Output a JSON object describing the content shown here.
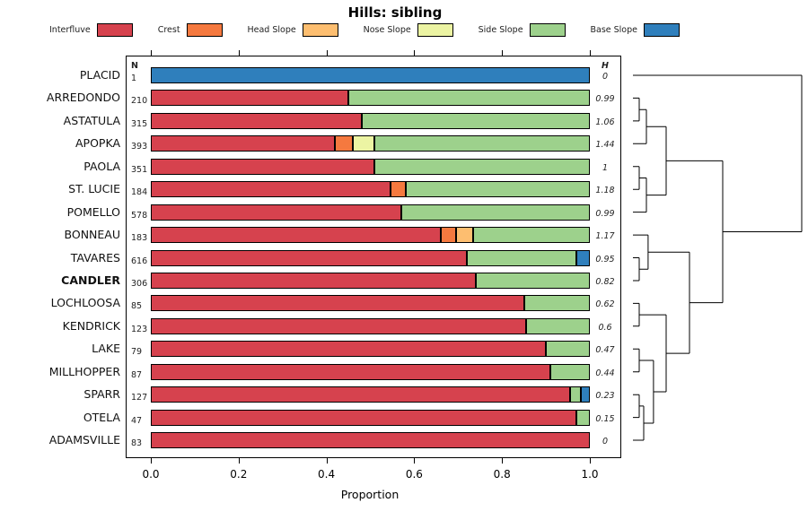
{
  "chart_data": {
    "type": "bar",
    "subtype": "horizontal-stacked-with-dendrogram",
    "title": "Hills: sibling",
    "xlabel": "Proportion",
    "xticks": [
      0.0,
      0.2,
      0.4,
      0.6,
      0.8,
      1.0
    ],
    "xtick_labels": [
      "0.0",
      "0.2",
      "0.4",
      "0.6",
      "0.8",
      "1.0"
    ],
    "xlim": [
      0.0,
      1.0
    ],
    "n_header": "N",
    "h_header": "H",
    "legend_position": "top",
    "categories": [
      "Interfluve",
      "Crest",
      "Head Slope",
      "Nose Slope",
      "Side Slope",
      "Base Slope"
    ],
    "category_colors": [
      "#d6424e",
      "#f5793f",
      "#fdbe70",
      "#ecf4a3",
      "#9dd18c",
      "#2f7fbc"
    ],
    "rows": [
      {
        "label": "PLACID",
        "n": "1",
        "h": "0",
        "bold": false,
        "values": [
          0,
          0,
          0,
          0,
          0,
          1.0
        ]
      },
      {
        "label": "ARREDONDO",
        "n": "210",
        "h": "0.99",
        "bold": false,
        "values": [
          0.45,
          0,
          0,
          0,
          0.55,
          0
        ]
      },
      {
        "label": "ASTATULA",
        "n": "315",
        "h": "1.06",
        "bold": false,
        "values": [
          0.48,
          0,
          0,
          0,
          0.52,
          0
        ]
      },
      {
        "label": "APOPKA",
        "n": "393",
        "h": "1.44",
        "bold": false,
        "values": [
          0.42,
          0.04,
          0,
          0.05,
          0.49,
          0
        ]
      },
      {
        "label": "PAOLA",
        "n": "351",
        "h": "1",
        "bold": false,
        "values": [
          0.51,
          0,
          0,
          0,
          0.49,
          0
        ]
      },
      {
        "label": "ST. LUCIE",
        "n": "184",
        "h": "1.18",
        "bold": false,
        "values": [
          0.545,
          0.035,
          0,
          0,
          0.42,
          0
        ]
      },
      {
        "label": "POMELLO",
        "n": "578",
        "h": "0.99",
        "bold": false,
        "values": [
          0.57,
          0,
          0,
          0,
          0.43,
          0
        ]
      },
      {
        "label": "BONNEAU",
        "n": "183",
        "h": "1.17",
        "bold": false,
        "values": [
          0.66,
          0.035,
          0.04,
          0,
          0.265,
          0
        ]
      },
      {
        "label": "TAVARES",
        "n": "616",
        "h": "0.95",
        "bold": false,
        "values": [
          0.72,
          0,
          0,
          0,
          0.25,
          0.03
        ]
      },
      {
        "label": "CANDLER",
        "n": "306",
        "h": "0.82",
        "bold": true,
        "values": [
          0.74,
          0,
          0,
          0,
          0.26,
          0
        ]
      },
      {
        "label": "LOCHLOOSA",
        "n": "85",
        "h": "0.62",
        "bold": false,
        "values": [
          0.85,
          0,
          0,
          0,
          0.15,
          0
        ]
      },
      {
        "label": "KENDRICK",
        "n": "123",
        "h": "0.6",
        "bold": false,
        "values": [
          0.855,
          0,
          0,
          0,
          0.145,
          0
        ]
      },
      {
        "label": "LAKE",
        "n": "79",
        "h": "0.47",
        "bold": false,
        "values": [
          0.9,
          0,
          0,
          0,
          0.1,
          0
        ]
      },
      {
        "label": "MILLHOPPER",
        "n": "87",
        "h": "0.44",
        "bold": false,
        "values": [
          0.91,
          0,
          0,
          0,
          0.09,
          0
        ]
      },
      {
        "label": "SPARR",
        "n": "127",
        "h": "0.23",
        "bold": false,
        "values": [
          0.955,
          0,
          0,
          0,
          0.025,
          0.02
        ]
      },
      {
        "label": "OTELA",
        "n": "47",
        "h": "0.15",
        "bold": false,
        "values": [
          0.97,
          0,
          0,
          0,
          0.03,
          0
        ]
      },
      {
        "label": "ADAMSVILLE",
        "n": "83",
        "h": "0",
        "bold": false,
        "values": [
          1.0,
          0,
          0,
          0,
          0,
          0
        ]
      }
    ],
    "dendrogram": {
      "note": "merges are [nodeA, nodeB, height]; leaves 0-16 top-to-bottom; merged clusters numbered 17+ in order",
      "merges": [
        [
          1,
          2,
          0.037
        ],
        [
          17,
          3,
          0.08
        ],
        [
          4,
          5,
          0.037
        ],
        [
          19,
          6,
          0.08
        ],
        [
          18,
          20,
          0.197
        ],
        [
          8,
          9,
          0.037
        ],
        [
          7,
          22,
          0.09
        ],
        [
          10,
          11,
          0.037
        ],
        [
          12,
          13,
          0.037
        ],
        [
          14,
          15,
          0.037
        ],
        [
          26,
          16,
          0.064
        ],
        [
          25,
          27,
          0.122
        ],
        [
          24,
          28,
          0.197
        ],
        [
          23,
          29,
          0.335
        ],
        [
          21,
          30,
          0.532
        ],
        [
          0,
          31,
          1.0
        ]
      ]
    }
  }
}
